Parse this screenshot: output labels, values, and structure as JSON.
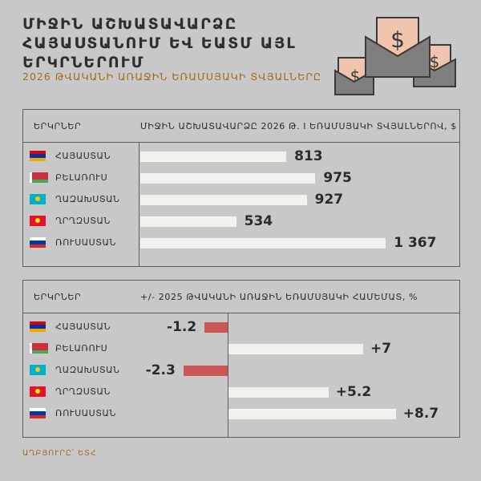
{
  "header": {
    "title": "ՄԻՋԻՆ ԱՇԽԱՏԱՎԱՐՁԸ ՀԱՅԱՍՏԱՆՈՒՄ ԵՎ ԵԱՏՄ ԱՅԼ ԵՐԿՐՆԵՐՈՒՄ",
    "subtitle": "2026 ԹՎԱԿԱՆԻ ԱՌԱՋԻՆ ԵՌԱՄՍՅԱԿԻ ՏՎՅԱԼՆԵՐԸ"
  },
  "illustration": {
    "icon": "money-envelope-icon",
    "accent": "#f0c4ad",
    "outline": "#3a3a3a",
    "body": "#7f7f7f"
  },
  "chart_data": [
    {
      "type": "bar",
      "orientation": "horizontal",
      "column_header": "ԵՐԿՐՆԵՐ",
      "value_header": "ՄԻՋԻՆ ԱՇԽԱՏԱՎԱՐՁԸ 2026 Թ. I ԵՌԱՄՍՅԱԿԻ ՏՎՅԱԼՆԵՐՈՎ, $",
      "categories": [
        "ՀԱՅԱՍՏԱՆ",
        "ԲԵԼԱՌՈՒՍ",
        "ՂԱԶԱԽՍՏԱՆ",
        "ՂՐՂԶՍՏԱՆ",
        "ՌՈՒՍԱՍՏԱՆ"
      ],
      "values": [
        813,
        975,
        927,
        534,
        1367
      ],
      "value_labels": [
        "813",
        "975",
        "927",
        "534",
        "1 367"
      ],
      "bar_color": "#f3f1ee",
      "xlim": [
        0,
        1500
      ]
    },
    {
      "type": "bar",
      "orientation": "horizontal",
      "column_header": "ԵՐԿՐՆԵՐ",
      "value_header": "+/- 2025 ԹՎԱԿԱՆԻ ԱՌԱՋԻՆ ԵՌԱՄՍՅԱԿԻ ՀԱՄԵՄԱՏ, %",
      "categories": [
        "ՀԱՅԱՍՏԱՆ",
        "ԲԵԼԱՌՈՒՍ",
        "ՂԱԶԱԽՍՏԱՆ",
        "ՂՐՂԶՍՏԱՆ",
        "ՌՈՒՍԱՍՏԱՆ"
      ],
      "values": [
        -1.2,
        7,
        -2.3,
        5.2,
        8.7
      ],
      "value_labels": [
        "-1.2",
        "+7",
        "-2.3",
        "+5.2",
        "+8.7"
      ],
      "positive_color": "#f3f1ee",
      "negative_color": "#cc5656",
      "xlim": [
        -3,
        9
      ]
    }
  ],
  "flags": [
    {
      "country": "armenia",
      "icon": "flag-armenia-icon",
      "colors": [
        "#d90012",
        "#0033a0",
        "#f2a800"
      ]
    },
    {
      "country": "belarus",
      "icon": "flag-belarus-icon",
      "colors": [
        "#c8313e",
        "#4aa657"
      ]
    },
    {
      "country": "kazakhstan",
      "icon": "flag-kazakhstan-icon",
      "colors": [
        "#00afca",
        "#fec50c"
      ]
    },
    {
      "country": "kyrgyzstan",
      "icon": "flag-kyrgyzstan-icon",
      "colors": [
        "#e8112d",
        "#ffef00"
      ]
    },
    {
      "country": "russia",
      "icon": "flag-russia-icon",
      "colors": [
        "#ffffff",
        "#0039a6",
        "#d52b1e"
      ]
    }
  ],
  "footer": {
    "source": "ԱՂԲՅՈՒՐԸ՝ ԵՏՀ"
  }
}
